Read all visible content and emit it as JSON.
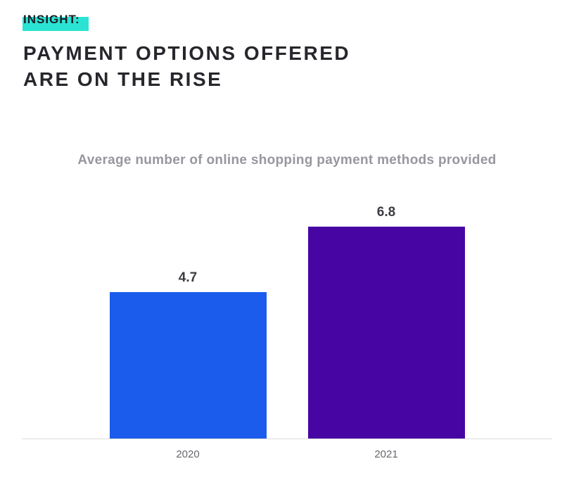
{
  "header": {
    "tag": "INSIGHT:",
    "highlight_color": "#2BE3D3",
    "title_line1": "PAYMENT OPTIONS OFFERED",
    "title_line2": "ARE ON THE RISE"
  },
  "chart_data": {
    "type": "bar",
    "title": "Average number of online shopping payment methods provided",
    "categories": [
      "2020",
      "2021"
    ],
    "values": [
      4.7,
      6.8
    ],
    "value_labels": [
      "4.7",
      "6.8"
    ],
    "bar_colors": [
      "#1B5CED",
      "#4706A3"
    ],
    "xlabel": "",
    "ylabel": "",
    "ylim": [
      0,
      7
    ],
    "grid": false,
    "legend": false
  }
}
